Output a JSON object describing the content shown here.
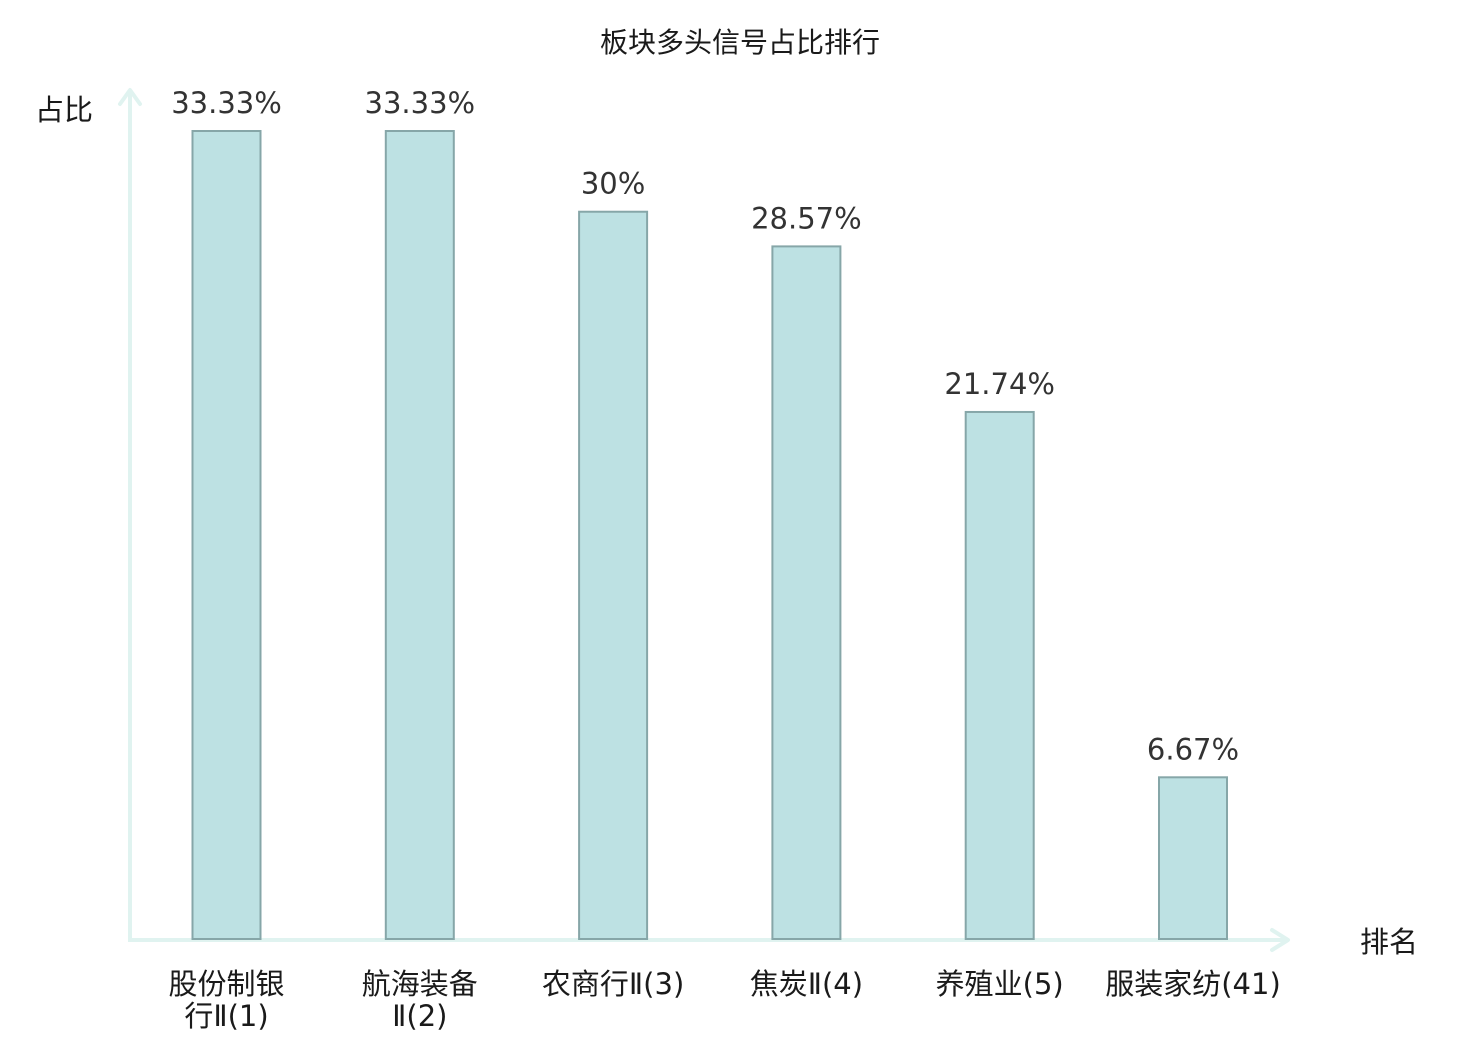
{
  "chart_data": {
    "type": "bar",
    "title": "板块多头信号占比排行",
    "ylabel": "占比",
    "xlabel": "排名",
    "ylim": [
      0,
      33.33
    ],
    "categories": [
      [
        "股份制银",
        "行Ⅱ(1)"
      ],
      [
        "航海装备",
        "Ⅱ(2)"
      ],
      [
        "农商行Ⅱ(3)"
      ],
      [
        "焦炭Ⅱ(4)"
      ],
      [
        "养殖业(5)"
      ],
      [
        "服装家纺(41)"
      ]
    ],
    "values": [
      33.33,
      33.33,
      30,
      28.57,
      21.74,
      6.67
    ],
    "value_labels": [
      "33.33%",
      "33.33%",
      "30%",
      "28.57%",
      "21.74%",
      "6.67%"
    ],
    "highlight_index": 5,
    "grid": false
  },
  "colors": {
    "bar_fill": "#bde1e3",
    "bar_stroke": "#86a6a8",
    "axis": "#e0f3f0",
    "highlight_label": "#e0191c",
    "label": "#1a1a1a"
  }
}
